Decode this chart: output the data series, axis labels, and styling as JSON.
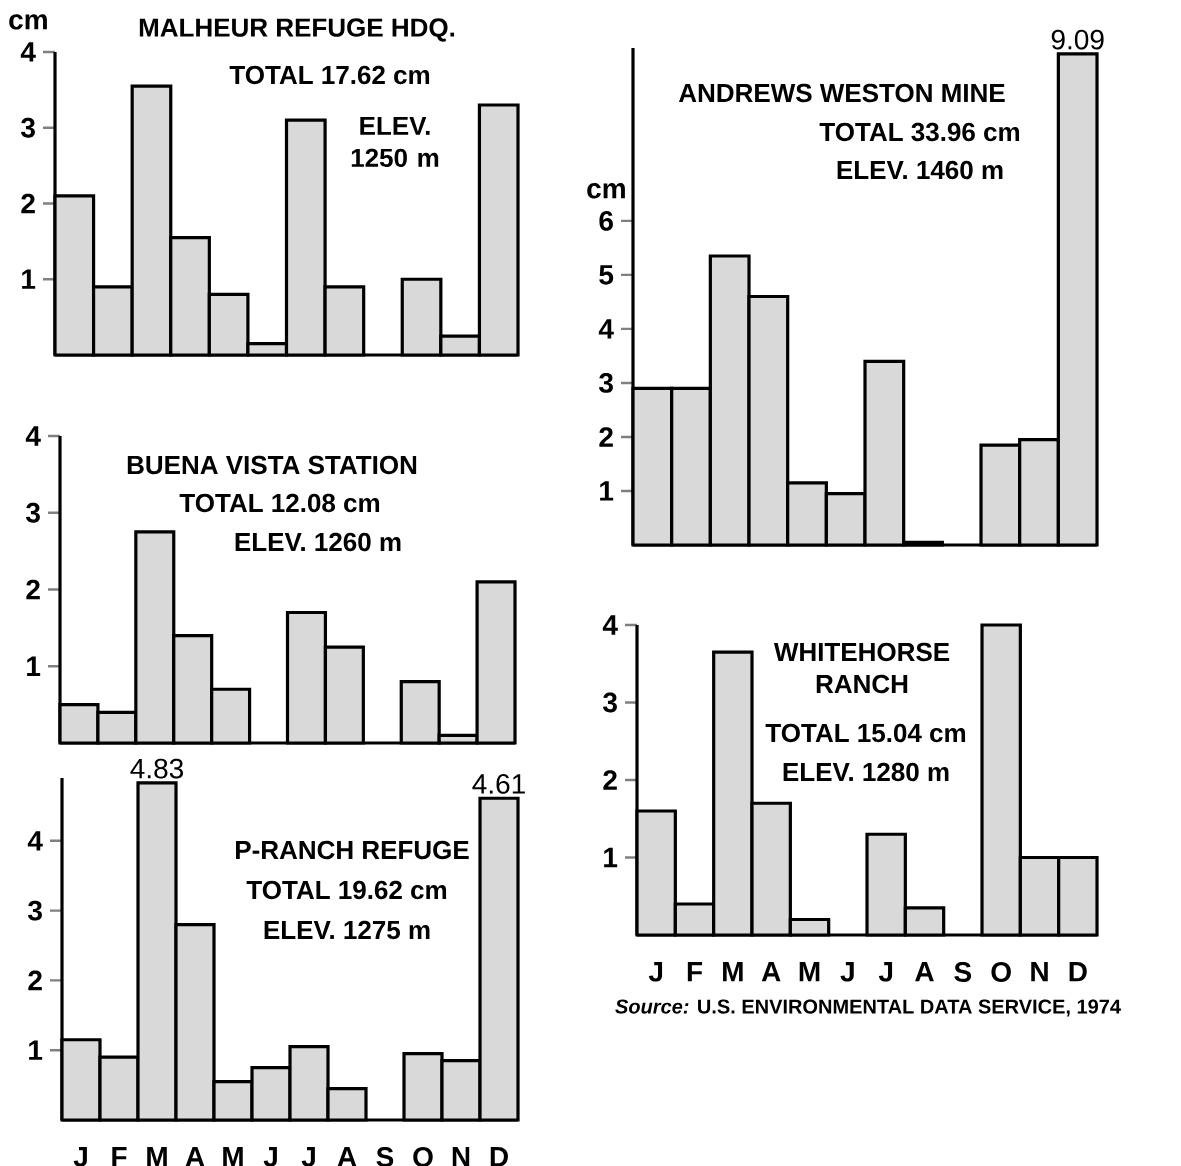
{
  "chart_data": [
    {
      "type": "bar",
      "title": "MALHEUR REFUGE HDQ.",
      "subtitle": "TOTAL 17.62 cm",
      "annotations": [
        "ELEV. 1250 m"
      ],
      "ylabel": "cm",
      "categories": [
        null,
        null,
        null,
        null,
        null,
        null,
        null,
        null,
        null,
        null,
        null,
        null
      ],
      "values": [
        2.1,
        0.9,
        3.55,
        1.55,
        0.8,
        0.15,
        3.1,
        0.9,
        0,
        1.0,
        0.25,
        3.3
      ],
      "color": "#d9d9d9",
      "ylim": [
        0,
        4
      ],
      "yticks": [
        1,
        2,
        3,
        4
      ]
    },
    {
      "type": "bar",
      "title": "ANDREWS WESTON MINE",
      "subtitle": "TOTAL 33.96 cm",
      "annotations": [
        "ELEV. 1460 m"
      ],
      "ylabel": "cm",
      "categories": [
        null,
        null,
        null,
        null,
        null,
        null,
        null,
        null,
        null,
        null,
        null,
        null
      ],
      "values": [
        2.9,
        2.9,
        5.35,
        4.6,
        1.15,
        0.95,
        3.4,
        0.05,
        0,
        1.85,
        1.95,
        9.09
      ],
      "value_labels": [
        null,
        null,
        null,
        null,
        null,
        null,
        null,
        null,
        null,
        null,
        null,
        "9.09"
      ],
      "color": "#d9d9d9",
      "ylim": [
        0,
        9.2
      ],
      "yticks": [
        1,
        2,
        3,
        4,
        5,
        6
      ]
    },
    {
      "type": "bar",
      "title": "BUENA VISTA STATION",
      "subtitle": "TOTAL 12.08 cm",
      "annotations": [
        "ELEV. 1260 m"
      ],
      "categories": [
        null,
        null,
        null,
        null,
        null,
        null,
        null,
        null,
        null,
        null,
        null,
        null
      ],
      "values": [
        0.5,
        0.4,
        2.75,
        1.4,
        0.7,
        0,
        1.7,
        1.25,
        0,
        0.8,
        0.1,
        2.1
      ],
      "color": "#d9d9d9",
      "ylim": [
        0,
        4
      ],
      "yticks": [
        1,
        2,
        3,
        4
      ]
    },
    {
      "type": "bar",
      "title": "WHITEHORSE RANCH",
      "subtitle": "TOTAL 15.04 cm",
      "annotations": [
        "ELEV. 1280 m",
        "*Source:* U.S. ENVIRONMENTAL DATA SERVICE, 1974"
      ],
      "categories": [
        "J",
        "F",
        "M",
        "A",
        "M",
        "J",
        "J",
        "A",
        "S",
        "O",
        "N",
        "D"
      ],
      "values": [
        1.6,
        0.4,
        3.65,
        1.7,
        0.2,
        0,
        1.3,
        0.35,
        0,
        4.0,
        1.0,
        1.0
      ],
      "color": "#d9d9d9",
      "ylim": [
        0,
        4
      ],
      "yticks": [
        1,
        2,
        3,
        4
      ]
    },
    {
      "type": "bar",
      "title": "P-RANCH REFUGE",
      "subtitle": "TOTAL 19.62 cm",
      "annotations": [
        "ELEV. 1275 m"
      ],
      "categories": [
        "J",
        "F",
        "M",
        "A",
        "M",
        "J",
        "J",
        "A",
        "S",
        "O",
        "N",
        "D"
      ],
      "values": [
        1.15,
        0.9,
        4.83,
        2.8,
        0.55,
        0.75,
        1.05,
        0.45,
        0,
        0.95,
        0.85,
        4.61
      ],
      "value_labels": [
        null,
        null,
        "4.83",
        null,
        null,
        null,
        null,
        null,
        null,
        null,
        null,
        "4.61"
      ],
      "color": "#d9d9d9",
      "ylim": [
        0,
        4.9
      ],
      "yticks": [
        1,
        2,
        3,
        4
      ]
    }
  ]
}
